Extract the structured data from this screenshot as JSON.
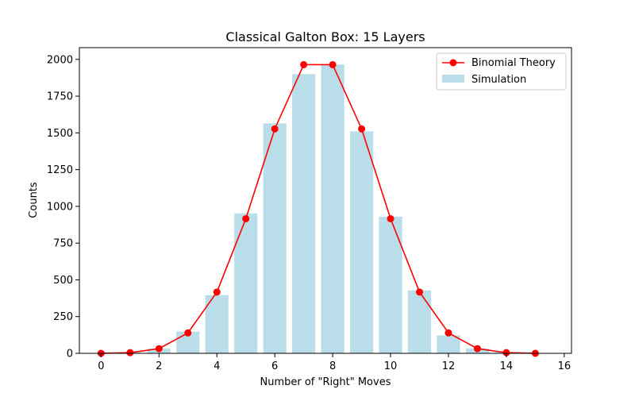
{
  "chart_data": {
    "type": "bar",
    "title": "Classical Galton Box: 15 Layers",
    "xlabel": "Number of \"Right\" Moves",
    "ylabel": "Counts",
    "xlim": [
      -0.75,
      16.25
    ],
    "ylim": [
      0,
      2080
    ],
    "xticks": [
      0,
      2,
      4,
      6,
      8,
      10,
      12,
      14,
      16
    ],
    "yticks": [
      0,
      250,
      500,
      750,
      1000,
      1250,
      1500,
      1750,
      2000
    ],
    "grid": false,
    "legend_position": "top-right",
    "series": [
      {
        "name": "Simulation",
        "kind": "bar",
        "color": "#add8e6",
        "x": [
          0,
          1,
          2,
          3,
          4,
          5,
          6,
          7,
          8,
          9,
          10,
          11,
          12,
          13,
          14,
          15
        ],
        "values": [
          0,
          6,
          32,
          148,
          396,
          952,
          1565,
          1900,
          1965,
          1510,
          930,
          428,
          122,
          33,
          8,
          0
        ]
      },
      {
        "name": "Binomial Theory",
        "kind": "line",
        "color": "#ff0000",
        "x": [
          0,
          1,
          2,
          3,
          4,
          5,
          6,
          7,
          8,
          9,
          10,
          11,
          12,
          13,
          14,
          15
        ],
        "values": [
          0.3,
          4.6,
          32,
          139,
          417,
          916,
          1527,
          1964,
          1964,
          1527,
          916,
          417,
          139,
          32,
          4.6,
          0.3
        ]
      }
    ]
  }
}
